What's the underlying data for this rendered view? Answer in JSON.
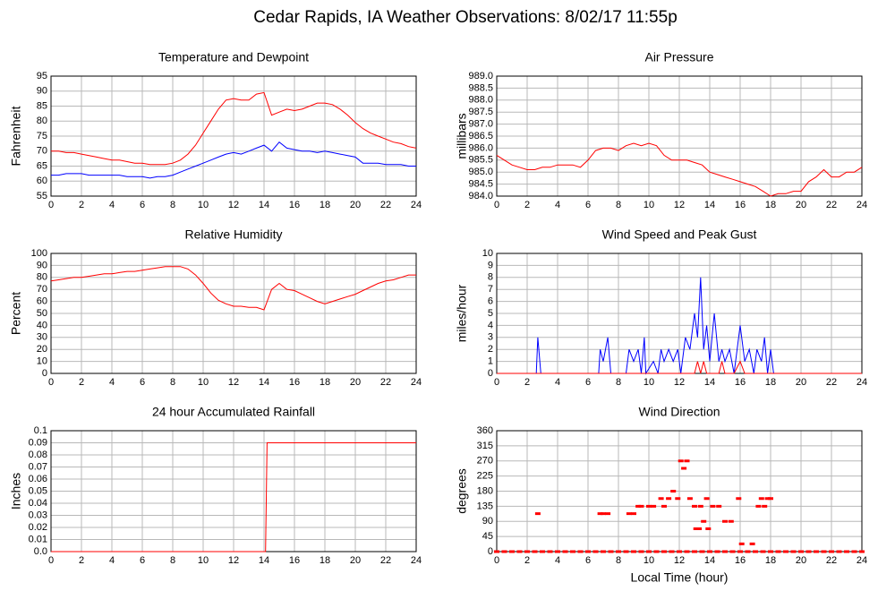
{
  "title": "Cedar Rapids, IA Weather Observations: 8/02/17 11:55p",
  "chart_data": [
    {
      "type": "line",
      "title": "Temperature and Dewpoint",
      "ylabel": "Fahrenheit",
      "x": [
        0,
        0.5,
        1,
        1.5,
        2,
        2.5,
        3,
        3.5,
        4,
        4.5,
        5,
        5.5,
        6,
        6.5,
        7,
        7.5,
        8,
        8.5,
        9,
        9.5,
        10,
        10.5,
        11,
        11.5,
        12,
        12.5,
        13,
        13.5,
        14,
        14.5,
        15,
        15.5,
        16,
        16.5,
        17,
        17.5,
        18,
        18.5,
        19,
        19.5,
        20,
        20.5,
        21,
        21.5,
        22,
        22.5,
        23,
        23.5,
        24
      ],
      "series": [
        {
          "color": "#ff0000",
          "values": [
            70,
            70,
            69.5,
            69.5,
            69,
            68.5,
            68,
            67.5,
            67,
            67,
            66.5,
            66,
            66,
            65.5,
            65.5,
            65.5,
            66,
            67,
            69,
            72,
            76,
            80,
            84,
            87,
            87.5,
            87,
            87,
            89,
            89.5,
            82,
            83,
            84,
            83.5,
            84,
            85,
            86,
            86,
            85.5,
            84,
            82,
            79.5,
            77.5,
            76,
            75,
            74,
            73,
            72.5,
            71.5,
            71
          ]
        },
        {
          "color": "#0000ff",
          "values": [
            62,
            62,
            62.5,
            62.5,
            62.5,
            62,
            62,
            62,
            62,
            62,
            61.5,
            61.5,
            61.5,
            61,
            61.5,
            61.5,
            62,
            63,
            64,
            65,
            66,
            67,
            68,
            69,
            69.5,
            69,
            70,
            71,
            72,
            70,
            73,
            71,
            70.5,
            70,
            70,
            69.5,
            70,
            69.5,
            69,
            68.5,
            68,
            66,
            66,
            66,
            65.5,
            65.5,
            65.5,
            65,
            65
          ]
        }
      ],
      "xlim": [
        0,
        24
      ],
      "xticks": [
        0,
        2,
        4,
        6,
        8,
        10,
        12,
        14,
        16,
        18,
        20,
        22,
        24
      ],
      "ylim": [
        55,
        95
      ],
      "yticks": [
        55,
        60,
        65,
        70,
        75,
        80,
        85,
        90,
        95
      ],
      "grid": true
    },
    {
      "type": "line",
      "title": "Air Pressure",
      "ylabel": "millibars",
      "x": [
        0,
        0.5,
        1,
        1.5,
        2,
        2.5,
        3,
        3.5,
        4,
        4.5,
        5,
        5.5,
        6,
        6.5,
        7,
        7.5,
        8,
        8.5,
        9,
        9.5,
        10,
        10.5,
        11,
        11.5,
        12,
        12.5,
        13,
        13.5,
        14,
        14.5,
        15,
        15.5,
        16,
        16.5,
        17,
        17.5,
        18,
        18.5,
        19,
        19.5,
        20,
        20.5,
        21,
        21.5,
        22,
        22.5,
        23,
        23.5,
        24
      ],
      "series": [
        {
          "color": "#ff0000",
          "values": [
            985.7,
            985.5,
            985.3,
            985.2,
            985.1,
            985.1,
            985.2,
            985.2,
            985.3,
            985.3,
            985.3,
            985.2,
            985.5,
            985.9,
            986.0,
            986.0,
            985.9,
            986.1,
            986.2,
            986.1,
            986.2,
            986.1,
            985.7,
            985.5,
            985.5,
            985.5,
            985.4,
            985.3,
            985.0,
            984.9,
            984.8,
            984.7,
            984.6,
            984.5,
            984.4,
            984.2,
            984.0,
            984.1,
            984.1,
            984.2,
            984.2,
            984.6,
            984.8,
            985.1,
            984.8,
            984.8,
            985.0,
            985.0,
            985.2
          ]
        }
      ],
      "xlim": [
        0,
        24
      ],
      "xticks": [
        0,
        2,
        4,
        6,
        8,
        10,
        12,
        14,
        16,
        18,
        20,
        22,
        24
      ],
      "ylim": [
        984,
        989
      ],
      "yticks": [
        {
          "value": 984,
          "label": "984.0"
        },
        984.5,
        {
          "value": 985,
          "label": "985.0"
        },
        985.5,
        {
          "value": 986,
          "label": "986.0"
        },
        986.5,
        {
          "value": 987,
          "label": "987.0"
        },
        987.5,
        {
          "value": 988,
          "label": "988.0"
        },
        988.5,
        {
          "value": 989,
          "label": "989.0"
        }
      ],
      "grid": true
    },
    {
      "type": "line",
      "title": "Relative Humidity",
      "ylabel": "Percent",
      "x": [
        0,
        0.5,
        1,
        1.5,
        2,
        2.5,
        3,
        3.5,
        4,
        4.5,
        5,
        5.5,
        6,
        6.5,
        7,
        7.5,
        8,
        8.5,
        9,
        9.5,
        10,
        10.5,
        11,
        11.5,
        12,
        12.5,
        13,
        13.5,
        14,
        14.5,
        15,
        15.5,
        16,
        16.5,
        17,
        17.5,
        18,
        18.5,
        19,
        19.5,
        20,
        20.5,
        21,
        21.5,
        22,
        22.5,
        23,
        23.5,
        24
      ],
      "series": [
        {
          "color": "#ff0000",
          "values": [
            77,
            78,
            79,
            80,
            80,
            81,
            82,
            83,
            83,
            84,
            85,
            85,
            86,
            87,
            88,
            89,
            89,
            89,
            87,
            82,
            75,
            67,
            61,
            58,
            56,
            56,
            55,
            55,
            53,
            70,
            75,
            70,
            69,
            66,
            63,
            60,
            58,
            60,
            62,
            64,
            66,
            69,
            72,
            75,
            77,
            78,
            80,
            82,
            82
          ]
        }
      ],
      "xlim": [
        0,
        24
      ],
      "xticks": [
        0,
        2,
        4,
        6,
        8,
        10,
        12,
        14,
        16,
        18,
        20,
        22,
        24
      ],
      "ylim": [
        0,
        100
      ],
      "yticks": [
        0,
        10,
        20,
        30,
        40,
        50,
        60,
        70,
        80,
        90,
        100
      ],
      "grid": true
    },
    {
      "type": "line",
      "title": "Wind Speed and Peak Gust",
      "ylabel": "miles/hour",
      "x": [
        0,
        2.6,
        2.7,
        2.9,
        6.7,
        6.8,
        7.0,
        7.3,
        7.5,
        8.5,
        8.7,
        9.0,
        9.3,
        9.5,
        9.7,
        9.8,
        10.3,
        10.6,
        10.8,
        11.0,
        11.3,
        11.6,
        11.9,
        12.1,
        12.4,
        12.7,
        13.0,
        13.2,
        13.4,
        13.6,
        13.8,
        14.0,
        14.3,
        14.6,
        14.8,
        15.0,
        15.3,
        15.6,
        16.0,
        16.3,
        16.6,
        16.9,
        17.1,
        17.4,
        17.6,
        17.8,
        18.0,
        18.2,
        24
      ],
      "series": [
        {
          "color": "#0000ff",
          "values": [
            0,
            0,
            3,
            0,
            0,
            2,
            1,
            3,
            0,
            0,
            2,
            1,
            2,
            0,
            3,
            0,
            1,
            0,
            2,
            1,
            2,
            1,
            2,
            0,
            3,
            2,
            5,
            3,
            8,
            2,
            4,
            1,
            5,
            1,
            2,
            1,
            2,
            0,
            4,
            1,
            2,
            0,
            2,
            1,
            3,
            0,
            2,
            0,
            0
          ]
        },
        {
          "color": "#ff0000",
          "values": [
            0,
            0,
            0,
            0,
            0,
            0,
            0,
            0,
            0,
            0,
            0,
            0,
            0,
            0,
            0,
            0,
            0,
            0,
            0,
            0,
            0,
            0,
            0,
            0,
            0,
            0,
            0,
            1,
            0,
            1,
            0,
            0,
            0,
            0,
            1,
            0,
            0,
            0,
            1,
            0,
            0,
            0,
            0,
            0,
            0,
            0,
            0,
            0,
            0
          ]
        }
      ],
      "xlim": [
        0,
        24
      ],
      "xticks": [
        0,
        2,
        4,
        6,
        8,
        10,
        12,
        14,
        16,
        18,
        20,
        22,
        24
      ],
      "ylim": [
        0,
        10
      ],
      "yticks": [
        0,
        1,
        2,
        3,
        4,
        5,
        6,
        7,
        8,
        9,
        10
      ],
      "grid": true
    },
    {
      "type": "line",
      "title": "24 hour Accumulated Rainfall",
      "ylabel": "Inches",
      "x": [
        0,
        14.1,
        14.2,
        24
      ],
      "series": [
        {
          "color": "#ff0000",
          "values": [
            0,
            0,
            0.09,
            0.09
          ]
        }
      ],
      "xlim": [
        0,
        24
      ],
      "xticks": [
        0,
        2,
        4,
        6,
        8,
        10,
        12,
        14,
        16,
        18,
        20,
        22,
        24
      ],
      "ylim": [
        0,
        0.1
      ],
      "yticks": [
        {
          "value": 0,
          "label": "0.0"
        },
        0.01,
        0.02,
        0.03,
        0.04,
        0.05,
        0.06,
        0.07,
        0.08,
        0.09,
        0.1
      ],
      "grid": true
    },
    {
      "type": "scatter",
      "title": "Wind Direction",
      "ylabel": "degrees",
      "xlabel": "Local Time (hour)",
      "color": "#ff0000",
      "x": [
        0,
        0.5,
        1,
        1.5,
        2,
        2.5,
        3,
        3.5,
        4,
        4.5,
        5,
        5.5,
        6,
        6.5,
        7,
        7.5,
        8,
        8.5,
        9,
        9.5,
        10,
        10.5,
        11,
        11.5,
        12,
        12.5,
        13,
        13.5,
        14,
        14.5,
        15,
        15.5,
        16,
        16.5,
        17,
        17.5,
        18,
        18.5,
        19,
        19.5,
        20,
        20.5,
        21,
        21.5,
        22,
        22.5,
        23,
        23.5,
        24,
        2.7,
        6.8,
        7.0,
        7.3,
        8.7,
        9.0,
        9.3,
        9.5,
        10.0,
        10.3,
        10.8,
        11.0,
        11.3,
        11.6,
        11.9,
        12.1,
        12.3,
        12.5,
        12.7,
        13.0,
        13.1,
        13.3,
        13.4,
        13.6,
        13.8,
        13.9,
        14.2,
        14.6,
        15.0,
        15.4,
        15.9,
        16.1,
        16.8,
        17.2,
        17.4,
        17.6,
        17.8,
        18.0
      ],
      "values": [
        0,
        0,
        0,
        0,
        0,
        0,
        0,
        0,
        0,
        0,
        0,
        0,
        0,
        0,
        0,
        0,
        0,
        0,
        0,
        0,
        0,
        0,
        0,
        0,
        0,
        0,
        0,
        0,
        0,
        0,
        0,
        0,
        0,
        0,
        0,
        0,
        0,
        0,
        0,
        0,
        0,
        0,
        0,
        0,
        0,
        0,
        0,
        0,
        0,
        113,
        113,
        113,
        113,
        113,
        113,
        135,
        135,
        135,
        135,
        158,
        135,
        158,
        180,
        158,
        270,
        248,
        270,
        158,
        135,
        68,
        68,
        135,
        90,
        158,
        68,
        135,
        135,
        90,
        90,
        158,
        23,
        23,
        135,
        158,
        135,
        158,
        158
      ],
      "xlim": [
        0,
        24
      ],
      "xticks": [
        0,
        2,
        4,
        6,
        8,
        10,
        12,
        14,
        16,
        18,
        20,
        22,
        24
      ],
      "ylim": [
        0,
        360
      ],
      "yticks": [
        0,
        45,
        90,
        135,
        180,
        225,
        270,
        315,
        360
      ],
      "grid": true
    }
  ]
}
